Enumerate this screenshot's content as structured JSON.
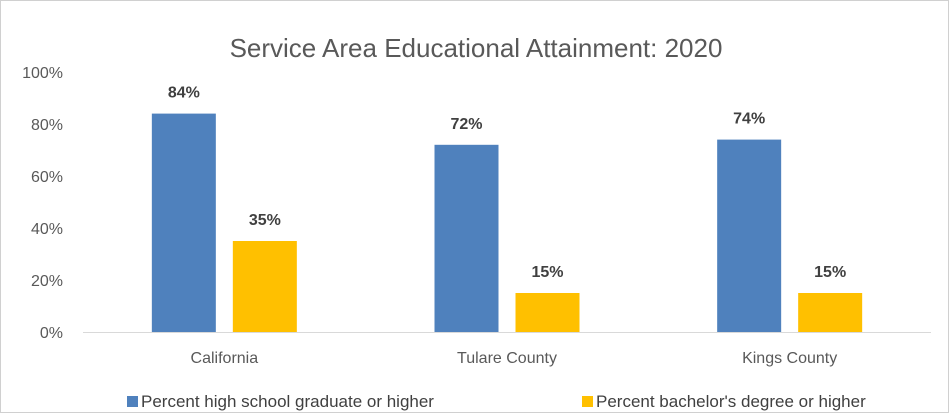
{
  "chart_data": {
    "type": "bar",
    "title": "Service Area Educational Attainment: 2020",
    "categories": [
      "California",
      "Tulare County",
      "Kings County"
    ],
    "series": [
      {
        "name": "Percent high school graduate or higher",
        "values": [
          84,
          72,
          74
        ],
        "labels": [
          "84%",
          "72%",
          "74%"
        ],
        "color": "#4f81bd"
      },
      {
        "name": "Percent bachelor's degree or higher",
        "values": [
          35,
          15,
          15
        ],
        "labels": [
          "35%",
          "15%",
          "15%"
        ],
        "color": "#ffc000"
      }
    ],
    "yticks": [
      "0%",
      "20%",
      "40%",
      "60%",
      "80%",
      "100%"
    ],
    "ylim": [
      0,
      100
    ],
    "grid": false,
    "legend_position": "bottom"
  }
}
